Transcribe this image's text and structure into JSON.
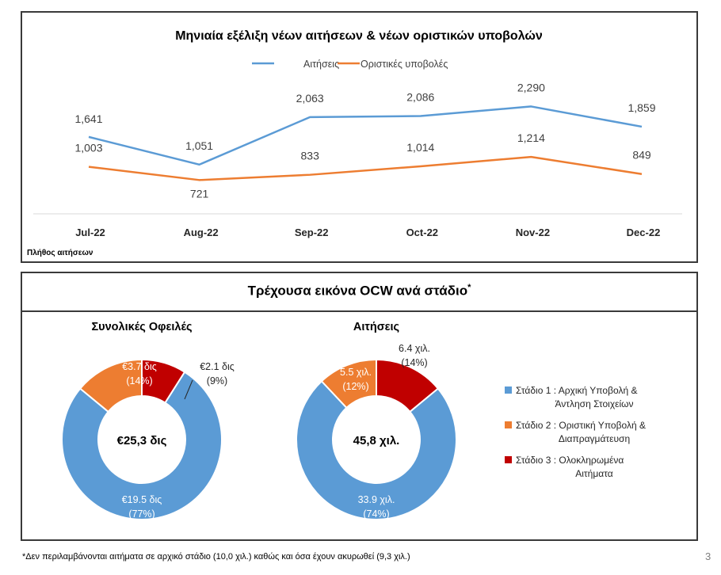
{
  "chart_data": [
    {
      "type": "line",
      "title": "Μηνιαία εξέλιξη νέων αιτήσεων & νέων οριστικών υποβολών",
      "categories": [
        "Jul-22",
        "Aug-22",
        "Sep-22",
        "Oct-22",
        "Nov-22",
        "Dec-22"
      ],
      "series": [
        {
          "name": "Αιτήσεις",
          "color": "#5b9bd5",
          "values": [
            1641,
            1051,
            2063,
            2086,
            2290,
            1859
          ],
          "labels": [
            "1,641",
            "1,051",
            "2,063",
            "2,086",
            "2,290",
            "1,859"
          ]
        },
        {
          "name": "Οριστικές υποβολές",
          "color": "#ed7d31",
          "values": [
            1003,
            721,
            833,
            1014,
            1214,
            849
          ],
          "labels": [
            "1,003",
            "721",
            "833",
            "1,014",
            "1,214",
            "849"
          ]
        }
      ],
      "ylim": [
        0,
        2600
      ],
      "legend": "top",
      "grid": false,
      "ylabel": "Πλήθος αιτήσεων"
    },
    {
      "type": "pie",
      "title": "Συνολικές Οφειλές",
      "center_label": "€25,3 δις",
      "slices": [
        {
          "name": "Στάδιο 1",
          "value": 77,
          "label": "€19.5 δις",
          "pct": "(77%)",
          "color": "#5b9bd5"
        },
        {
          "name": "Στάδιο 2",
          "value": 14,
          "label": "€3.7 δις",
          "pct": "(14%)",
          "color": "#ed7d31"
        },
        {
          "name": "Στάδιο 3",
          "value": 9,
          "label": "€2.1 δις",
          "pct": "(9%)",
          "color": "#c00000"
        }
      ]
    },
    {
      "type": "pie",
      "title": "Αιτήσεις",
      "center_label": "45,8 χιλ.",
      "slices": [
        {
          "name": "Στάδιο 1",
          "value": 74,
          "label": "33.9 χιλ.",
          "pct": "(74%)",
          "color": "#5b9bd5"
        },
        {
          "name": "Στάδιο 2",
          "value": 12,
          "label": "5.5 χιλ.",
          "pct": "(12%)",
          "color": "#ed7d31"
        },
        {
          "name": "Στάδιο 3",
          "value": 14,
          "label": "6.4 χιλ.",
          "pct": "(14%)",
          "color": "#c00000"
        }
      ]
    }
  ],
  "section_title": "Τρέχουσα εικόνα OCW ανά στάδιο",
  "section_title_mark": "*",
  "legend": [
    {
      "line1": "Στάδιο 1 : Αρχική Υποβολή &",
      "line2": "Άντληση Στοιχείων",
      "color": "#5b9bd5"
    },
    {
      "line1": "Στάδιο 2 : Οριστική Υποβολή &",
      "line2": "Διαπραγμάτευση",
      "color": "#ed7d31"
    },
    {
      "line1": "Στάδιο 3 : Ολοκληρωμένα",
      "line2": "Αιτήματα",
      "color": "#c00000"
    }
  ],
  "footnote": "*Δεν περιλαμβάνονται αιτήματα σε αρχικό στάδιο (10,0 χιλ.) καθώς και όσα έχουν ακυρωθεί (9,3 χιλ.)",
  "page_number": "3"
}
